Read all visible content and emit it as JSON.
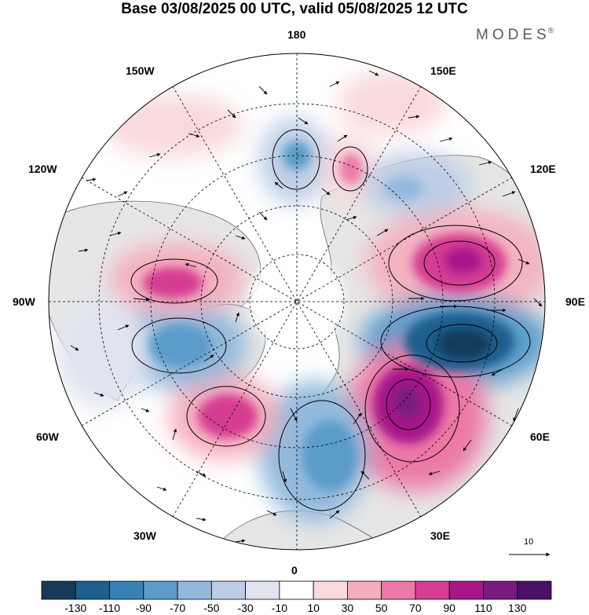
{
  "title": "Base 03/08/2025 00 UTC, valid 05/08/2025 12 UTC",
  "brand": {
    "name": "MODES",
    "mark": "®"
  },
  "longitude_labels": {
    "top": "180",
    "bottom": "0",
    "left": "90W",
    "right": "90E",
    "upper_left_1": "150W",
    "upper_left_2": "120W",
    "lower_left_1": "60W",
    "lower_left_2": "30W",
    "upper_right_1": "150E",
    "upper_right_2": "120E",
    "lower_right_1": "60E",
    "lower_right_2": "30E"
  },
  "reference_vector": {
    "value": "10"
  },
  "colorbar": {
    "labels": [
      "-130",
      "-110",
      "-90",
      "-70",
      "-50",
      "-30",
      "-10",
      "10",
      "30",
      "50",
      "70",
      "90",
      "110",
      "130"
    ],
    "colors": [
      "#163a5a",
      "#1d5f8f",
      "#3880b6",
      "#5c9ccb",
      "#92b9dc",
      "#bdcde6",
      "#e1e4f0",
      "#ffffff",
      "#f9d9dc",
      "#f5aebd",
      "#ec78a6",
      "#d53e92",
      "#a8178a",
      "#7a1a7f",
      "#4b1067"
    ]
  },
  "anomaly_centers": [
    {
      "name": "high-east-asia",
      "value": 95
    },
    {
      "name": "low-east-asia",
      "value": -125
    },
    {
      "name": "high-west-russia",
      "value": 110
    },
    {
      "name": "low-europe",
      "value": -60
    },
    {
      "name": "high-north-atlantic",
      "value": 80
    },
    {
      "name": "low-greenland-canada",
      "value": -60
    },
    {
      "name": "high-canada",
      "value": 65
    },
    {
      "name": "low-north-pacific",
      "value": -55
    },
    {
      "name": "high-north-pacific",
      "value": 45
    },
    {
      "name": "low-siberia",
      "value": -40
    }
  ]
}
